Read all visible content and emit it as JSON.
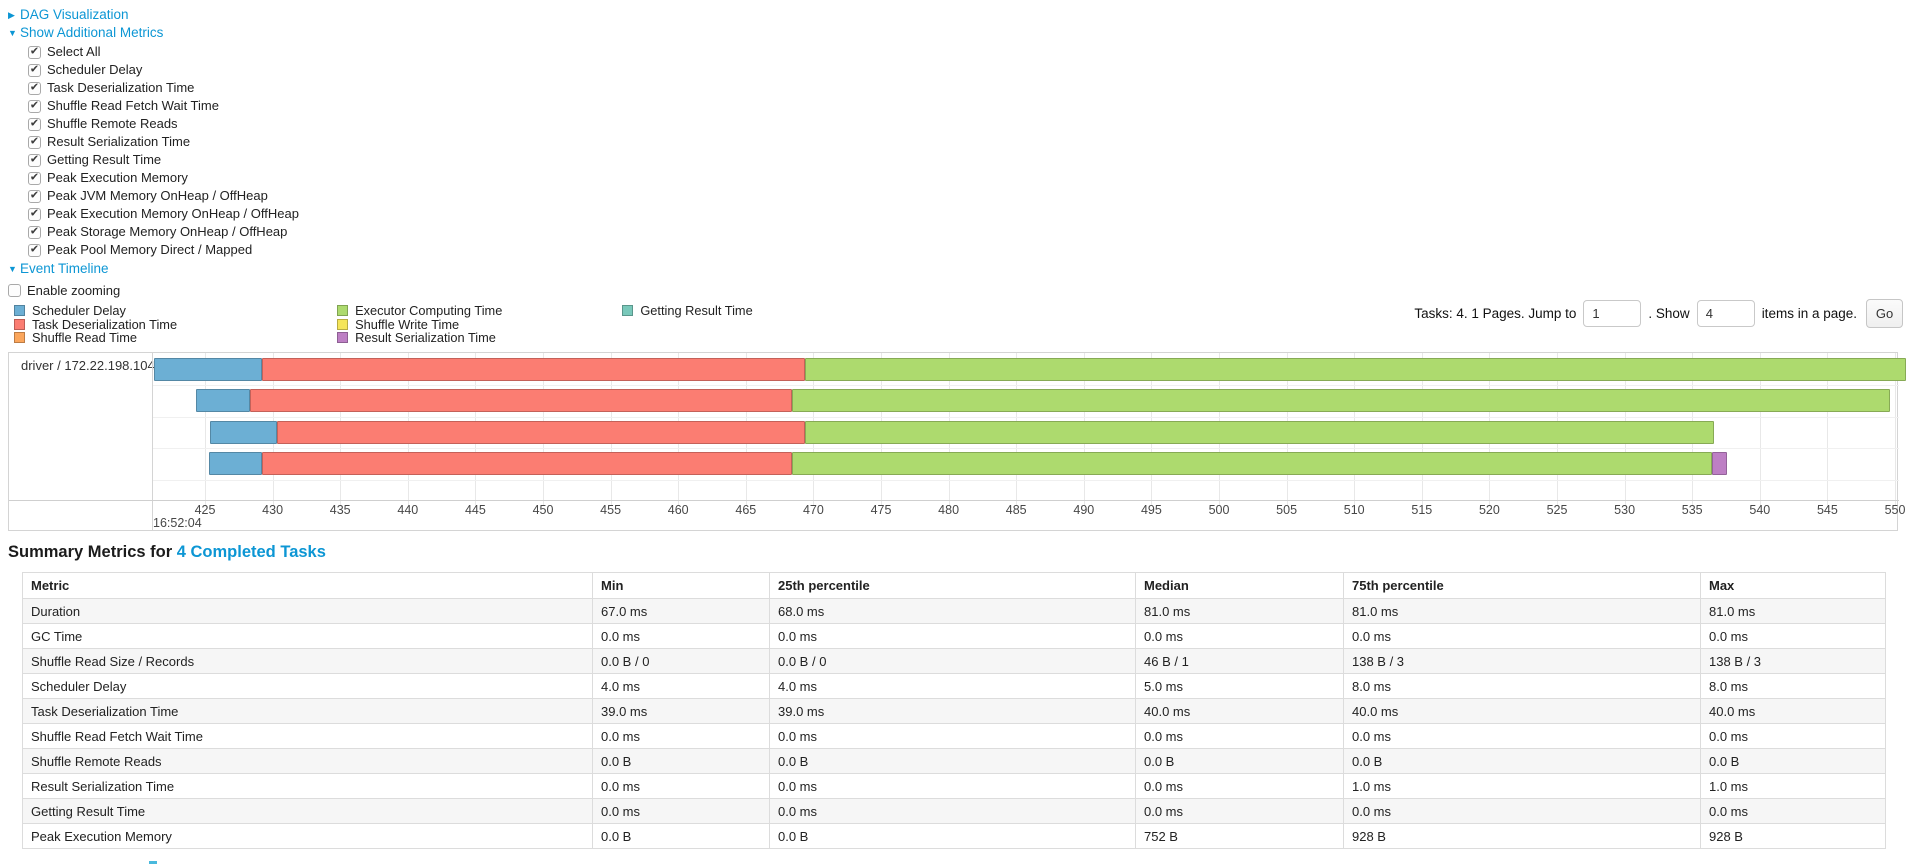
{
  "accent": {
    "link": "#0c96d4"
  },
  "controls": {
    "dag_link": "DAG Visualization",
    "metrics_link": "Show Additional Metrics",
    "metric_checkboxes": [
      "Select All",
      "Scheduler Delay",
      "Task Deserialization Time",
      "Shuffle Read Fetch Wait Time",
      "Shuffle Remote Reads",
      "Result Serialization Time",
      "Getting Result Time",
      "Peak Execution Memory",
      "Peak JVM Memory OnHeap / OffHeap",
      "Peak Execution Memory OnHeap / OffHeap",
      "Peak Storage Memory OnHeap / OffHeap",
      "Peak Pool Memory Direct / Mapped"
    ],
    "metric_checkboxes_checked": true,
    "event_timeline_link": "Event Timeline",
    "enable_zooming_label": "Enable zooming",
    "enable_zooming_checked": false
  },
  "colors": {
    "scheduler_delay": "#6CAFD4",
    "task_deserialization": "#FB7D72",
    "shuffle_read": "#FBA65C",
    "executor_computing": "#ADDA6E",
    "shuffle_write": "#F5E559",
    "result_serialization": "#BD7FC4",
    "getting_result": "#79C8BA"
  },
  "legend": {
    "columns": [
      [
        {
          "label": "Scheduler Delay",
          "type": "scheduler_delay"
        },
        {
          "label": "Task Deserialization Time",
          "type": "task_deserialization"
        },
        {
          "label": "Shuffle Read Time",
          "type": "shuffle_read"
        }
      ],
      [
        {
          "label": "Executor Computing Time",
          "type": "executor_computing"
        },
        {
          "label": "Shuffle Write Time",
          "type": "shuffle_write"
        },
        {
          "label": "Result Serialization Time",
          "type": "result_serialization"
        }
      ],
      [
        {
          "label": "Getting Result Time",
          "type": "getting_result"
        }
      ]
    ]
  },
  "pagination": {
    "summary_text": "Tasks: 4. 1 Pages. Jump to",
    "jump_value": "1",
    "mid_text": ". Show",
    "size_value": "4",
    "suffix_text": "items in a page.",
    "go_label": "Go"
  },
  "chart_data": {
    "type": "timeline",
    "group_label": "driver / 172.22.198.104",
    "axis": {
      "unit": "ms within second 16:52:04",
      "major_label": "16:52:04",
      "ticks_start": 425,
      "ticks_end": 550,
      "tick_step": 5,
      "view_min": 421.2,
      "view_max": 550.4
    },
    "tasks": [
      {
        "segments": [
          [
            "scheduler_delay",
            421.2,
            429.2
          ],
          [
            "task_deserialization",
            429.2,
            469.4
          ],
          [
            "executor_computing",
            469.4,
            550.8
          ]
        ]
      },
      {
        "segments": [
          [
            "scheduler_delay",
            424.3,
            428.3
          ],
          [
            "task_deserialization",
            428.3,
            468.4
          ],
          [
            "executor_computing",
            468.4,
            549.6
          ]
        ]
      },
      {
        "segments": [
          [
            "scheduler_delay",
            425.4,
            430.3
          ],
          [
            "task_deserialization",
            430.3,
            469.4
          ],
          [
            "executor_computing",
            469.4,
            536.6
          ]
        ]
      },
      {
        "segments": [
          [
            "scheduler_delay",
            425.3,
            429.2
          ],
          [
            "task_deserialization",
            429.2,
            468.4
          ],
          [
            "executor_computing",
            468.4,
            536.5
          ],
          [
            "result_serialization",
            536.5,
            537.6
          ]
        ]
      }
    ]
  },
  "summary": {
    "heading_prefix": "Summary Metrics for ",
    "heading_link": "4 Completed Tasks",
    "columns": [
      "Metric",
      "Min",
      "25th percentile",
      "Median",
      "75th percentile",
      "Max"
    ],
    "rows": [
      [
        "Duration",
        "67.0 ms",
        "68.0 ms",
        "81.0 ms",
        "81.0 ms",
        "81.0 ms"
      ],
      [
        "GC Time",
        "0.0 ms",
        "0.0 ms",
        "0.0 ms",
        "0.0 ms",
        "0.0 ms"
      ],
      [
        "Shuffle Read Size / Records",
        "0.0 B / 0",
        "0.0 B / 0",
        "46 B / 1",
        "138 B / 3",
        "138 B / 3"
      ],
      [
        "Scheduler Delay",
        "4.0 ms",
        "4.0 ms",
        "5.0 ms",
        "8.0 ms",
        "8.0 ms"
      ],
      [
        "Task Deserialization Time",
        "39.0 ms",
        "39.0 ms",
        "40.0 ms",
        "40.0 ms",
        "40.0 ms"
      ],
      [
        "Shuffle Read Fetch Wait Time",
        "0.0 ms",
        "0.0 ms",
        "0.0 ms",
        "0.0 ms",
        "0.0 ms"
      ],
      [
        "Shuffle Remote Reads",
        "0.0 B",
        "0.0 B",
        "0.0 B",
        "0.0 B",
        "0.0 B"
      ],
      [
        "Result Serialization Time",
        "0.0 ms",
        "0.0 ms",
        "0.0 ms",
        "1.0 ms",
        "1.0 ms"
      ],
      [
        "Getting Result Time",
        "0.0 ms",
        "0.0 ms",
        "0.0 ms",
        "0.0 ms",
        "0.0 ms"
      ],
      [
        "Peak Execution Memory",
        "0.0 B",
        "0.0 B",
        "752 B",
        "928 B",
        "928 B"
      ]
    ]
  }
}
